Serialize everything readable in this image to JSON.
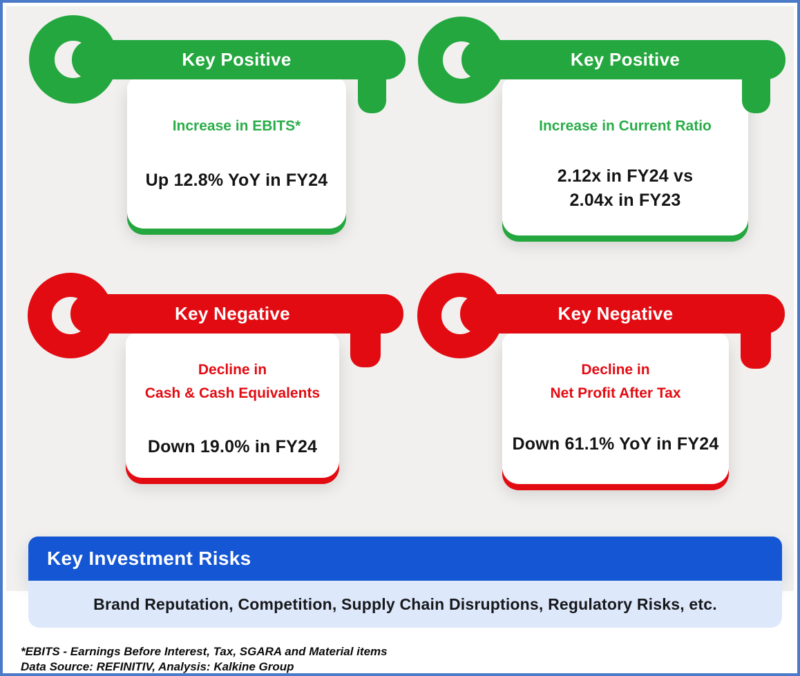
{
  "cards": [
    {
      "sentiment": "positive",
      "label": "Key Positive",
      "headline": "Increase in EBITS*",
      "value": "Up 12.8% YoY in FY24"
    },
    {
      "sentiment": "positive",
      "label": "Key Positive",
      "headline": "Increase in Current Ratio",
      "value": "2.12x in FY24 vs\n2.04x in FY23"
    },
    {
      "sentiment": "negative",
      "label": "Key Negative",
      "headline": "Decline in\nCash & Cash Equivalents",
      "value": "Down 19.0% in FY24"
    },
    {
      "sentiment": "negative",
      "label": "Key Negative",
      "headline": "Decline in\nNet Profit After Tax",
      "value": "Down 61.1% YoY in FY24"
    }
  ],
  "risks": {
    "title": "Key Investment Risks",
    "items_text": "Brand Reputation, Competition, Supply Chain Disruptions, Regulatory Risks, etc."
  },
  "footnotes": {
    "ebits_note": "*EBITS - Earnings Before Interest, Tax, SGARA and Material items",
    "source_note": "Data Source: REFINITIV, Analysis: Kalkine Group"
  },
  "colors": {
    "positive_green": "#23a73e",
    "negative_red": "#e30b12",
    "banner_blue": "#1556d4",
    "panel_blue": "#dee8fb",
    "border_blue": "#4b7ac8",
    "background_gray": "#f1f0ee"
  }
}
